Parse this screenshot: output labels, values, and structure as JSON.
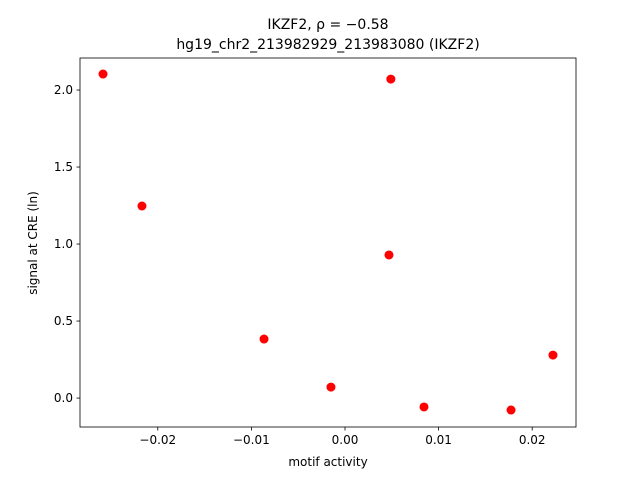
{
  "chart_data": {
    "type": "scatter",
    "title": "IKZF2, ρ = −0.58",
    "subtitle": "hg19_chr2_213982929_213983080 (IKZF2)",
    "x_label": "motif activity",
    "y_label": "signal at CRE (ln)",
    "color": "red",
    "x": [
      -0.02585,
      -0.02169,
      -0.00865,
      -0.0015,
      0.0047,
      0.0049,
      0.00844,
      0.01774,
      0.02222
    ],
    "values": [
      2.104,
      1.247,
      0.383,
      0.071,
      0.929,
      2.071,
      -0.058,
      -0.078,
      0.279
    ],
    "xlim": [
      -0.02831,
      0.02468
    ],
    "ylim": [
      -0.188,
      2.208
    ],
    "xticks": [
      {
        "value": -0.02,
        "label": "−0.02"
      },
      {
        "value": -0.01,
        "label": "−0.01"
      },
      {
        "value": 0,
        "label": "0.00"
      },
      0.01,
      0.02
    ],
    "yticks": [
      {
        "value": 0,
        "label": "0.0"
      },
      0.5,
      {
        "value": 1,
        "label": "1.0"
      },
      1.5,
      {
        "value": 2,
        "label": "2.0"
      }
    ]
  }
}
